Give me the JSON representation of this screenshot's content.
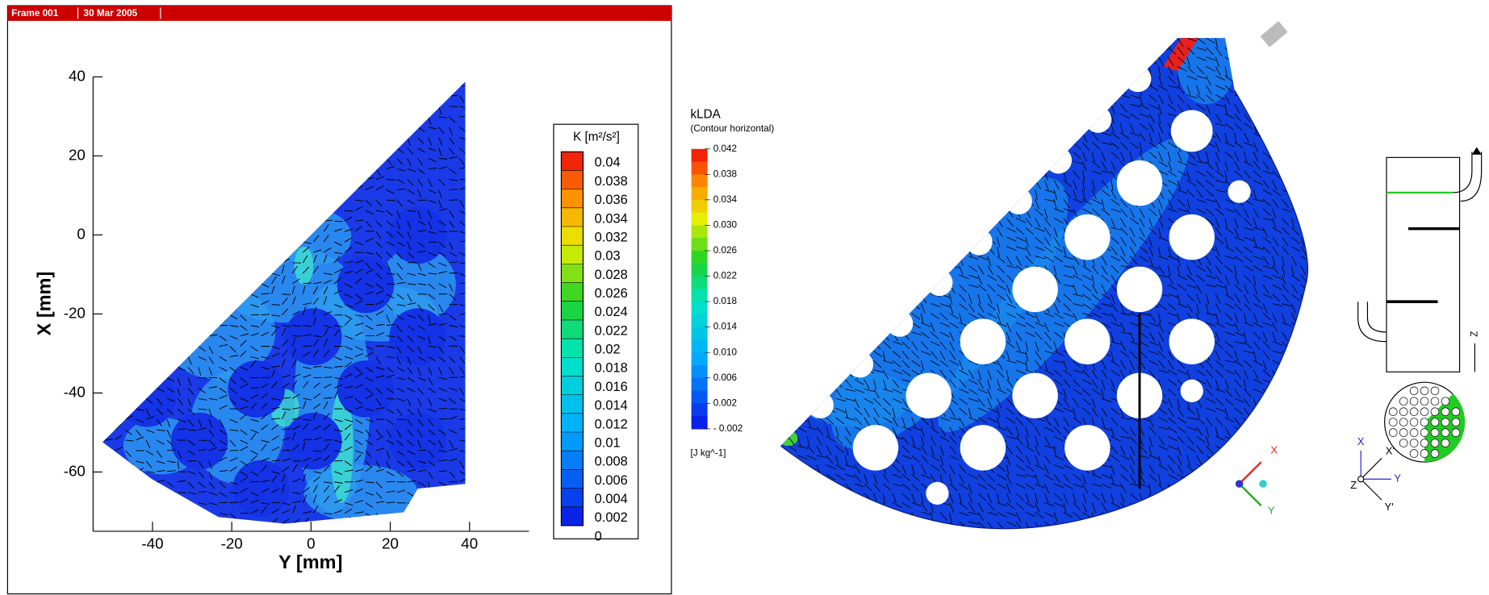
{
  "header": {
    "frame": "Frame 001",
    "date": "30 Mar 2005"
  },
  "chart_data": [
    {
      "type": "contour",
      "xlabel": "Y [mm]",
      "ylabel": "X [mm]",
      "xlim": [
        -55,
        55
      ],
      "ylim": [
        -75,
        40
      ],
      "xticks": [
        -40,
        -20,
        0,
        20,
        40
      ],
      "yticks": [
        40,
        20,
        0,
        -20,
        -40,
        -60
      ],
      "colorbar": {
        "title": "K [m²/s²]",
        "ticks": [
          0.04,
          0.038,
          0.036,
          0.034,
          0.032,
          0.03,
          0.028,
          0.026,
          0.024,
          0.022,
          0.02,
          0.018,
          0.016,
          0.014,
          0.012,
          0.01,
          0.008,
          0.006,
          0.004,
          0.002,
          0
        ]
      }
    },
    {
      "type": "contour",
      "colorbar": {
        "title": "kLDA",
        "subtitle": "(Contour horizontal)",
        "units": "[J kg^-1]",
        "ticks": [
          {
            "value": 0.042,
            "label": "0.042"
          },
          {
            "value": 0.038,
            "label": "0.038"
          },
          {
            "value": 0.034,
            "label": "0.034"
          },
          {
            "value": 0.03,
            "label": "0.030"
          },
          {
            "value": 0.026,
            "label": "0.026"
          },
          {
            "value": 0.022,
            "label": "0.022"
          },
          {
            "value": 0.018,
            "label": "0.018"
          },
          {
            "value": 0.014,
            "label": "0.014"
          },
          {
            "value": 0.01,
            "label": "0.010"
          },
          {
            "value": 0.006,
            "label": "0.006"
          },
          {
            "value": 0.002,
            "label": "0.002"
          },
          {
            "value": -0.002,
            "label": "- 0.002"
          }
        ]
      }
    }
  ],
  "annotations": {
    "triad": [
      "X",
      "Y"
    ],
    "schematic": [
      "Z",
      "X",
      "X'",
      "Y",
      "Z",
      "Y'"
    ]
  }
}
